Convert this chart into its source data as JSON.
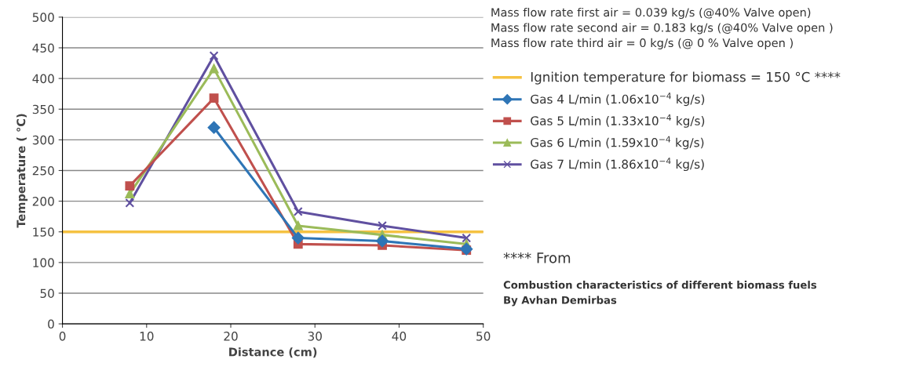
{
  "chart_data": {
    "type": "line",
    "xlabel": "Distance (cm)",
    "ylabel": "Temperature ( °C)",
    "xlim": [
      0,
      50
    ],
    "xticks": [
      0,
      10,
      20,
      30,
      40,
      50
    ],
    "ylim": [
      0,
      500
    ],
    "yticks": [
      0,
      50,
      100,
      150,
      200,
      250,
      300,
      350,
      400,
      450,
      500
    ],
    "grid": "y",
    "legend": "right",
    "x": [
      8,
      18,
      28,
      38,
      48
    ],
    "series": [
      {
        "name": "Gas 4 L/min (1.06x10$^{−4}$ kg/s)",
        "color": "#2e75b6",
        "marker": "diamond",
        "values": [
          null,
          320,
          140,
          135,
          122
        ]
      },
      {
        "name": "Gas 5 L/min (1.33x10$^{−4}$ kg/s)",
        "color": "#c0504d",
        "marker": "square",
        "values": [
          225,
          368,
          130,
          128,
          120
        ]
      },
      {
        "name": "Gas 6 L/min (1.59x10$^{−4}$ kg/s)",
        "color": "#9bbb59",
        "marker": "triangle",
        "values": [
          212,
          416,
          160,
          145,
          130
        ]
      },
      {
        "name": "Gas 7 L/min (1.86x10$^{−4}$ kg/s)",
        "color": "#6050a0",
        "marker": "cross",
        "values": [
          197,
          437,
          183,
          160,
          140
        ]
      }
    ],
    "ref_lines": [
      {
        "axis": "y",
        "value": 150,
        "label": "Ignition temperature for biomass = 150 °C ****",
        "color": "#f5c242",
        "line_style": "solid"
      }
    ],
    "annotations": [
      "Mass flow rate first air = 0.039 kg/s (@40% Valve open)",
      "Mass flow rate second air = 0.183 kg/s (@40% Valve open )",
      "Mass flow rate third air = 0 kg/s (@ 0 % Valve open )",
      "**** From",
      "Combustion characteristics of different biomass fuels",
      "By Avhan Demirbas"
    ]
  }
}
